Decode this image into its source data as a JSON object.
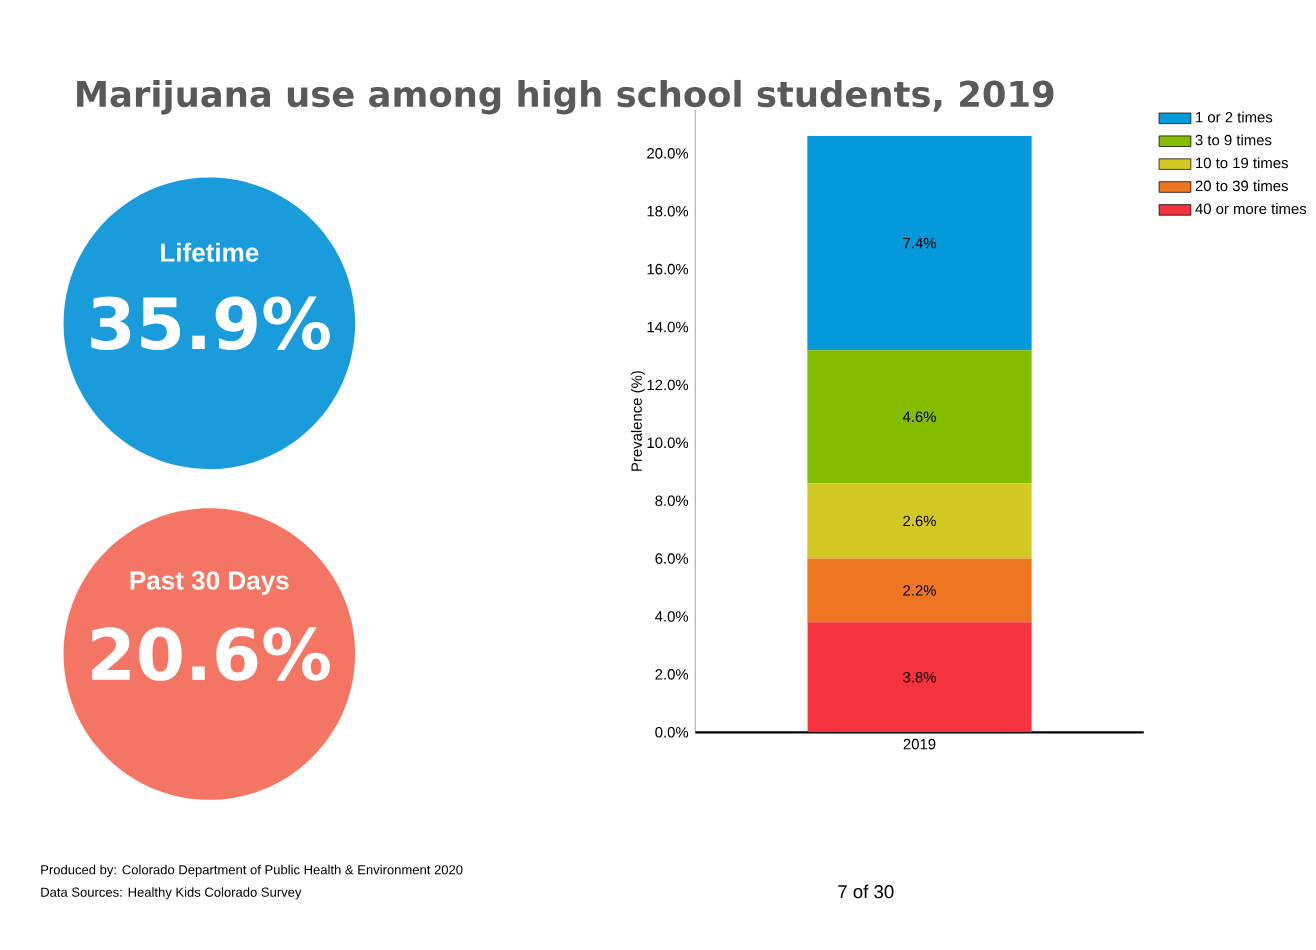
{
  "chart_data": {
    "type": "bar",
    "title": "Marijuana use among high school students, 2019",
    "ylabel": "Prevalence (%)",
    "categories": [
      "2019"
    ],
    "stacked": true,
    "legend": "top right",
    "ylim": [
      0,
      21.5
    ],
    "yticks": [
      {
        "value": 0,
        "label": "0.0%"
      },
      {
        "value": 2,
        "label": "2.0%"
      },
      {
        "value": 4,
        "label": "4.0%"
      },
      {
        "value": 6,
        "label": "6.0%"
      },
      {
        "value": 8,
        "label": "8.0%"
      },
      {
        "value": 10,
        "label": "10.0%"
      },
      {
        "value": 12,
        "label": "12.0%"
      },
      {
        "value": 14,
        "label": "14.0%"
      },
      {
        "value": 16,
        "label": "16.0%"
      },
      {
        "value": 18,
        "label": "18.0%"
      },
      {
        "value": 20,
        "label": "20.0%"
      }
    ],
    "series": [
      {
        "name": "40 or more times",
        "color": "#f4333f",
        "values": [
          3.8
        ],
        "value_labels": [
          "3.8%"
        ]
      },
      {
        "name": "20 to 39 times",
        "color": "#ee7623",
        "values": [
          2.2
        ],
        "value_labels": [
          "2.2%"
        ]
      },
      {
        "name": "10 to 19 times",
        "color": "#d4c924",
        "values": [
          2.6
        ],
        "value_labels": [
          "2.6%"
        ]
      },
      {
        "name": "3 to 9 times",
        "color": "#84bd00",
        "values": [
          4.6
        ],
        "value_labels": [
          "4.6%"
        ]
      },
      {
        "name": "1 or 2 times",
        "color": "#0399db",
        "values": [
          7.4
        ],
        "value_labels": [
          "7.4%"
        ]
      }
    ],
    "annotations": [
      "Lifetime",
      "35.9%",
      "Past 30 Days",
      "20.6%",
      "Produced by: Colorado Department of Public Health & Environment 2020",
      "Data Sources: Healthy Kids Colorado Survey",
      "7 of 30"
    ]
  }
}
